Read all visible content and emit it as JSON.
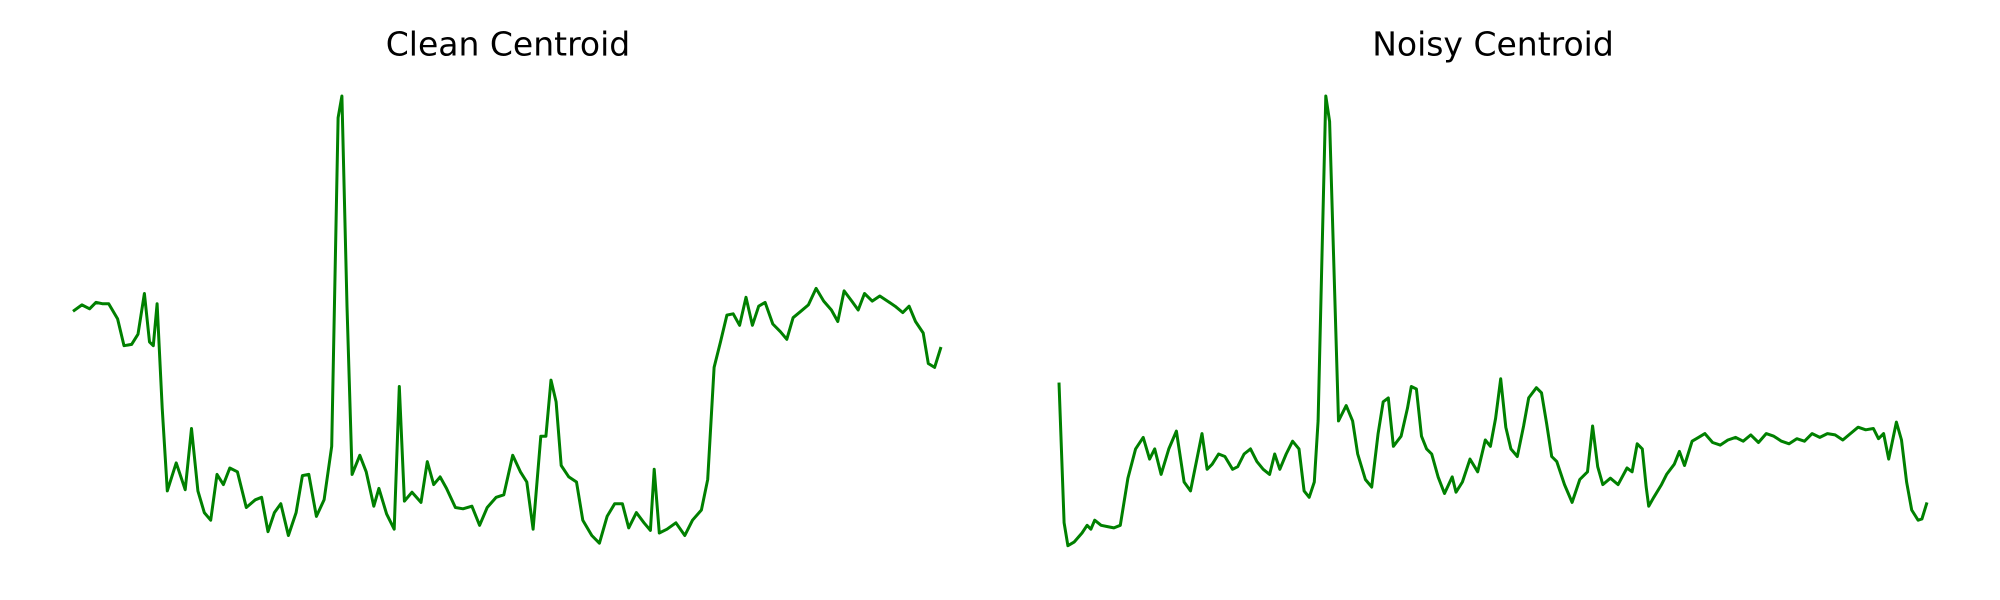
{
  "chart_data": [
    {
      "type": "line",
      "title": "Clean Centroid",
      "color": "#008000",
      "xlim": [
        0,
        681
      ],
      "ylim": [
        0,
        365
      ],
      "x": [
        0,
        7,
        13,
        18,
        23,
        28,
        35,
        40,
        46,
        51,
        56,
        60,
        63,
        66,
        70,
        74,
        81,
        88,
        93,
        98,
        103,
        108,
        113,
        118,
        123,
        129,
        136,
        143,
        148,
        153,
        158,
        163,
        169,
        175,
        180,
        185,
        191,
        197,
        203,
        208,
        211,
        215,
        219,
        225,
        230,
        236,
        240,
        246,
        252,
        256,
        260,
        266,
        273,
        278,
        283,
        288,
        293,
        300,
        306,
        313,
        319,
        325,
        332,
        338,
        345,
        351,
        356,
        361,
        367,
        371,
        375,
        379,
        383,
        389,
        395,
        400,
        407,
        413,
        419,
        425,
        431,
        436,
        442,
        448,
        453,
        456,
        460,
        466,
        473,
        480,
        486,
        493,
        498,
        503,
        508,
        513,
        518,
        523,
        528,
        533,
        538,
        543,
        549,
        555,
        560,
        565,
        571,
        577,
        583,
        589,
        595,
        600,
        605,
        611,
        616,
        621,
        627,
        633,
        639,
        645,
        651,
        656,
        661,
        667,
        671,
        676,
        681
      ],
      "values": [
        196,
        201,
        198,
        203,
        202,
        202,
        190,
        169,
        170,
        178,
        210,
        172,
        169,
        202,
        120,
        55,
        77,
        56,
        104,
        55,
        38,
        32,
        68,
        60,
        73,
        70,
        42,
        48,
        50,
        23,
        38,
        45,
        20,
        38,
        67,
        68,
        35,
        48,
        90,
        348,
        365,
        200,
        68,
        83,
        70,
        43,
        57,
        37,
        25,
        137,
        47,
        54,
        46,
        78,
        60,
        66,
        57,
        42,
        41,
        43,
        28,
        42,
        50,
        52,
        83,
        70,
        62,
        25,
        98,
        98,
        142,
        125,
        75,
        66,
        62,
        32,
        20,
        14,
        35,
        45,
        45,
        26,
        38,
        30,
        24,
        72,
        22,
        25,
        30,
        20,
        32,
        40,
        64,
        152,
        172,
        193,
        194,
        185,
        207,
        185,
        200,
        203,
        186,
        180,
        174,
        191,
        196,
        201,
        214,
        204,
        197,
        188,
        212,
        204,
        197,
        210,
        204,
        208,
        204,
        200,
        195,
        200,
        188,
        179,
        155,
        152,
        168
      ]
    },
    {
      "type": "line",
      "title": "Noisy Centroid",
      "color": "#008000",
      "xlim": [
        0,
        680
      ],
      "ylim": [
        0,
        365
      ],
      "x": [
        0,
        4,
        7,
        12,
        18,
        22,
        25,
        28,
        33,
        38,
        43,
        48,
        54,
        60,
        66,
        71,
        75,
        80,
        86,
        92,
        98,
        103,
        108,
        112,
        116,
        120,
        125,
        130,
        136,
        140,
        145,
        150,
        155,
        160,
        165,
        169,
        173,
        178,
        183,
        188,
        192,
        196,
        200,
        203,
        206,
        209,
        212,
        216,
        219,
        225,
        230,
        234,
        240,
        245,
        250,
        254,
        258,
        262,
        268,
        273,
        276,
        280,
        284,
        288,
        292,
        297,
        302,
        308,
        311,
        316,
        322,
        328,
        334,
        338,
        342,
        346,
        350,
        354,
        359,
        364,
        368,
        374,
        378,
        382,
        386,
        390,
        396,
        402,
        408,
        414,
        418,
        422,
        426,
        432,
        438,
        445,
        449,
        453,
        457,
        460,
        462,
        466,
        472,
        476,
        482,
        486,
        490,
        496,
        501,
        506,
        512,
        518,
        524,
        530,
        536,
        542,
        548,
        554,
        560,
        566,
        572,
        578,
        584,
        590,
        596,
        602,
        608,
        614,
        620,
        626,
        632,
        638,
        642,
        646,
        650,
        656,
        660,
        664,
        668,
        673,
        676,
        680
      ],
      "values": [
        140,
        30,
        12,
        15,
        22,
        28,
        25,
        32,
        28,
        27,
        26,
        28,
        65,
        88,
        97,
        80,
        88,
        68,
        88,
        102,
        62,
        55,
        80,
        100,
        72,
        76,
        84,
        82,
        72,
        74,
        84,
        88,
        78,
        72,
        68,
        84,
        72,
        84,
        94,
        88,
        55,
        50,
        62,
        110,
        240,
        365,
        345,
        210,
        110,
        122,
        110,
        84,
        64,
        58,
        100,
        125,
        128,
        90,
        98,
        120,
        137,
        135,
        98,
        88,
        84,
        66,
        53,
        66,
        54,
        62,
        80,
        70,
        95,
        90,
        112,
        143,
        105,
        88,
        82,
        106,
        128,
        136,
        132,
        108,
        82,
        78,
        60,
        46,
        64,
        70,
        106,
        74,
        60,
        65,
        60,
        73,
        70,
        92,
        88,
        58,
        43,
        50,
        60,
        68,
        76,
        86,
        75,
        94,
        97,
        100,
        93,
        91,
        95,
        97,
        94,
        99,
        93,
        100,
        98,
        94,
        92,
        96,
        94,
        100,
        97,
        100,
        99,
        95,
        100,
        105,
        103,
        104,
        96,
        100,
        80,
        109,
        95,
        62,
        40,
        32,
        33,
        46
      ]
    }
  ]
}
